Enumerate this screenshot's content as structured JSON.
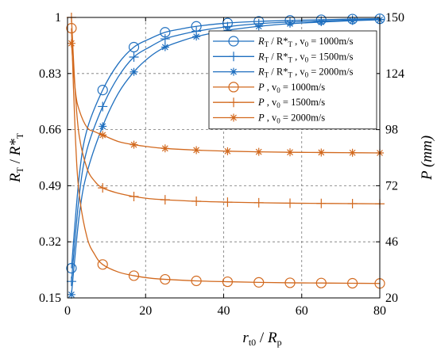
{
  "chart_data": {
    "type": "line",
    "x_axis": {
      "label_main": "r",
      "label_sub": "t0",
      "label_sep": " / ",
      "label_main2": "R",
      "label_sub2": "p",
      "ticks": [
        "0",
        "20",
        "40",
        "60",
        "80"
      ],
      "tick_values": [
        0,
        20,
        40,
        60,
        80
      ],
      "range": [
        0,
        80
      ]
    },
    "y_left": {
      "label_main": "R",
      "label_sub": "T",
      "label_sep": " / ",
      "label_main2": "R*",
      "label_sub2": "T",
      "ticks": [
        "0.15",
        "0.32",
        "0.49",
        "0.66",
        "0.83",
        "1"
      ],
      "tick_values": [
        0.15,
        0.32,
        0.49,
        0.66,
        0.83,
        1.0
      ],
      "range": [
        0.15,
        1.0
      ]
    },
    "y_right": {
      "label": "P (mm)",
      "ticks": [
        "20",
        "46",
        "72",
        "98",
        "124",
        "150"
      ],
      "tick_values": [
        20,
        46,
        72,
        98,
        124,
        150
      ],
      "range": [
        20,
        150
      ]
    },
    "grid": true,
    "legend_position": "top-right",
    "series": [
      {
        "name": "R_T / R*_T , v0 = 1000m/s",
        "legend": {
          "a": "R",
          "as": "T",
          "b": " / R*",
          "bs": "T",
          "c": " , v",
          "cs": "0",
          "d": " = 1000m/s"
        },
        "axis": "left",
        "color": "#1f6fbf",
        "marker": "circle",
        "points": [
          [
            1,
            0.24
          ],
          [
            3,
            0.52
          ],
          [
            5,
            0.66
          ],
          [
            9,
            0.78
          ],
          [
            13,
            0.86
          ],
          [
            17,
            0.91
          ],
          [
            21,
            0.935
          ],
          [
            25,
            0.955
          ],
          [
            29,
            0.965
          ],
          [
            33,
            0.973
          ],
          [
            41,
            0.983
          ],
          [
            49,
            0.988
          ],
          [
            57,
            0.991
          ],
          [
            65,
            0.993
          ],
          [
            73,
            0.995
          ],
          [
            80,
            0.996
          ]
        ],
        "markers_at": [
          1,
          9,
          17,
          25,
          33,
          41,
          49,
          57,
          65,
          73,
          80
        ]
      },
      {
        "name": "R_T / R*_T , v0 = 1500m/s",
        "legend": {
          "a": "R",
          "as": "T",
          "b": " / R*",
          "bs": "T",
          "c": " , v",
          "cs": "0",
          "d": " = 1500m/s"
        },
        "axis": "left",
        "color": "#1f6fbf",
        "marker": "plus",
        "points": [
          [
            1,
            0.2
          ],
          [
            3,
            0.46
          ],
          [
            5,
            0.6
          ],
          [
            9,
            0.73
          ],
          [
            13,
            0.82
          ],
          [
            17,
            0.88
          ],
          [
            21,
            0.91
          ],
          [
            25,
            0.935
          ],
          [
            29,
            0.948
          ],
          [
            33,
            0.958
          ],
          [
            41,
            0.972
          ],
          [
            49,
            0.981
          ],
          [
            57,
            0.986
          ],
          [
            65,
            0.989
          ],
          [
            73,
            0.992
          ],
          [
            80,
            0.994
          ]
        ],
        "markers_at": [
          1,
          9,
          17,
          25,
          33,
          41,
          49,
          57,
          65,
          73,
          80
        ]
      },
      {
        "name": "R_T / R*_T , v0 = 2000m/s",
        "legend": {
          "a": "R",
          "as": "T",
          "b": " / R*",
          "bs": "T",
          "c": " , v",
          "cs": "0",
          "d": " = 2000m/s"
        },
        "axis": "left",
        "color": "#1f6fbf",
        "marker": "star",
        "points": [
          [
            1,
            0.16
          ],
          [
            3,
            0.4
          ],
          [
            5,
            0.53
          ],
          [
            9,
            0.67
          ],
          [
            13,
            0.77
          ],
          [
            17,
            0.835
          ],
          [
            21,
            0.88
          ],
          [
            25,
            0.91
          ],
          [
            29,
            0.928
          ],
          [
            33,
            0.942
          ],
          [
            41,
            0.961
          ],
          [
            49,
            0.973
          ],
          [
            57,
            0.981
          ],
          [
            65,
            0.986
          ],
          [
            73,
            0.99
          ],
          [
            80,
            0.993
          ]
        ],
        "markers_at": [
          1,
          9,
          17,
          25,
          33,
          41,
          49,
          57,
          65,
          73,
          80
        ]
      },
      {
        "name": "P , v0 = 1000m/s",
        "legend": {
          "a": "P",
          "as": "",
          "b": "",
          "bs": "",
          "c": " , v",
          "cs": "0",
          "d": " = 1000m/s"
        },
        "axis": "right",
        "color": "#d2691e",
        "marker": "circle",
        "points": [
          [
            1,
            145
          ],
          [
            2,
            95
          ],
          [
            3,
            68
          ],
          [
            5,
            48
          ],
          [
            7,
            40
          ],
          [
            9,
            35.5
          ],
          [
            13,
            32
          ],
          [
            17,
            30.3
          ],
          [
            21,
            29.2
          ],
          [
            25,
            28.6
          ],
          [
            33,
            27.9
          ],
          [
            41,
            27.5
          ],
          [
            49,
            27.2
          ],
          [
            57,
            27.0
          ],
          [
            65,
            26.9
          ],
          [
            73,
            26.8
          ],
          [
            80,
            26.7
          ]
        ],
        "markers_at": [
          1,
          9,
          17,
          25,
          33,
          41,
          49,
          57,
          65,
          73,
          80
        ]
      },
      {
        "name": "P , v0 = 1500m/s",
        "legend": {
          "a": "P",
          "as": "",
          "b": "",
          "bs": "",
          "c": " , v",
          "cs": "0",
          "d": " = 1500m/s"
        },
        "axis": "right",
        "color": "#d2691e",
        "marker": "plus",
        "points": [
          [
            1,
            150
          ],
          [
            2,
            115
          ],
          [
            3,
            95
          ],
          [
            5,
            80
          ],
          [
            7,
            74
          ],
          [
            9,
            71
          ],
          [
            13,
            68.5
          ],
          [
            17,
            67
          ],
          [
            21,
            66
          ],
          [
            25,
            65.5
          ],
          [
            33,
            64.8
          ],
          [
            41,
            64.4
          ],
          [
            49,
            64.1
          ],
          [
            57,
            63.9
          ],
          [
            65,
            63.8
          ],
          [
            73,
            63.7
          ],
          [
            80,
            63.6
          ]
        ],
        "markers_at": [
          1,
          9,
          17,
          25,
          33,
          41,
          49,
          57,
          65,
          73,
          80
        ]
      },
      {
        "name": "P , v0 = 2000m/s",
        "legend": {
          "a": "P",
          "as": "",
          "b": "",
          "bs": "",
          "c": " , v",
          "cs": "0",
          "d": " = 2000m/s"
        },
        "axis": "right",
        "color": "#d2691e",
        "marker": "star",
        "points": [
          [
            1,
            138
          ],
          [
            2,
            116
          ],
          [
            3,
            107
          ],
          [
            5,
            99
          ],
          [
            7,
            97
          ],
          [
            9,
            95.5
          ],
          [
            13,
            92.5
          ],
          [
            17,
            91
          ],
          [
            21,
            90
          ],
          [
            25,
            89.3
          ],
          [
            33,
            88.5
          ],
          [
            41,
            88
          ],
          [
            49,
            87.7
          ],
          [
            57,
            87.5
          ],
          [
            65,
            87.4
          ],
          [
            73,
            87.3
          ],
          [
            80,
            87.2
          ]
        ],
        "markers_at": [
          1,
          9,
          17,
          25,
          33,
          41,
          49,
          57,
          65,
          73,
          80
        ]
      }
    ]
  }
}
